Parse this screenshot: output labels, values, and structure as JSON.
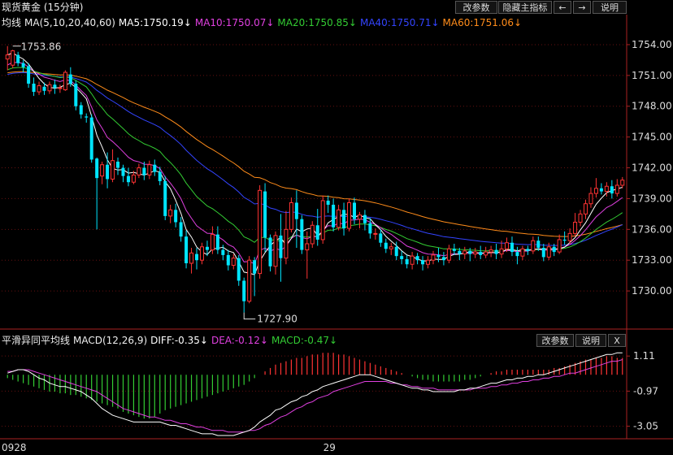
{
  "title": "现货黄金 (15分钟)",
  "top_buttons": [
    {
      "label": "改参数"
    },
    {
      "label": "隐藏主指标"
    },
    {
      "label": "←"
    },
    {
      "label": "→"
    },
    {
      "label": "说明"
    }
  ],
  "ma_legend": {
    "name": "均线",
    "params": "MA(5,10,20,40,60)",
    "items": [
      {
        "text": "MA5:1750.19↓",
        "color": "#ffffff"
      },
      {
        "text": "MA10:1750.07↓",
        "color": "#e040e0"
      },
      {
        "text": "MA20:1750.85↓",
        "color": "#33cc33"
      },
      {
        "text": "MA40:1750.71↓",
        "color": "#3344ff"
      },
      {
        "text": "MA60:1751.06↓",
        "color": "#ff8c1a"
      }
    ]
  },
  "macd_legend": {
    "name": "平滑异同平均线",
    "params": "MACD(12,26,9)",
    "items": [
      {
        "text": "DIFF:-0.35↓",
        "color": "#ffffff"
      },
      {
        "text": "DEA:-0.12↓",
        "color": "#e040e0"
      },
      {
        "text": "MACD:-0.47↓",
        "color": "#33cc33"
      }
    ]
  },
  "macd_buttons": [
    {
      "label": "改参数"
    },
    {
      "label": "说明"
    },
    {
      "label": "X"
    }
  ],
  "colors": {
    "up": "#ff3333",
    "down": "#00e5ff",
    "grid": "#661111",
    "axis": "#aa2222"
  },
  "chart_data": [
    {
      "type": "candlestick",
      "price_ticks": [
        "1754.00",
        "1751.00",
        "1748.00",
        "1745.00",
        "1742.00",
        "1739.00",
        "1736.00",
        "1733.00",
        "1730.00"
      ],
      "ylim": [
        1727.0,
        1755.5
      ],
      "x_labels": [
        {
          "text": "0928",
          "index": 0
        },
        {
          "text": "29",
          "index": 61
        }
      ],
      "annotations": [
        {
          "text": "1753.86",
          "index": 1,
          "value": 1753.86
        },
        {
          "text": "1727.90",
          "index": 45,
          "value": 1727.9
        }
      ],
      "candles": [
        [
          1752.6,
          1753.0,
          1751.5,
          1753.86
        ],
        [
          1752.0,
          1753.4,
          1751.7,
          1753.5
        ],
        [
          1753.0,
          1752.2,
          1751.9,
          1753.3
        ],
        [
          1752.2,
          1751.8,
          1751.3,
          1752.5
        ],
        [
          1751.9,
          1750.2,
          1749.8,
          1752.2
        ],
        [
          1750.2,
          1749.4,
          1749.0,
          1750.8
        ],
        [
          1749.4,
          1750.0,
          1749.1,
          1750.4
        ],
        [
          1749.9,
          1749.5,
          1749.1,
          1750.3
        ],
        [
          1749.5,
          1750.1,
          1749.2,
          1750.4
        ],
        [
          1750.1,
          1749.8,
          1749.2,
          1750.6
        ],
        [
          1749.8,
          1749.8,
          1749.3,
          1750.1
        ],
        [
          1749.6,
          1751.3,
          1749.5,
          1751.5
        ],
        [
          1751.1,
          1750.2,
          1749.9,
          1751.8
        ],
        [
          1750.2,
          1748.0,
          1747.6,
          1750.5
        ],
        [
          1748.1,
          1747.2,
          1746.8,
          1748.4
        ],
        [
          1747.0,
          1746.9,
          1746.4,
          1747.3
        ],
        [
          1746.9,
          1742.8,
          1742.5,
          1747.2
        ],
        [
          1742.9,
          1741.0,
          1736.0,
          1743.0
        ],
        [
          1741.2,
          1742.3,
          1740.4,
          1742.6
        ],
        [
          1742.3,
          1740.9,
          1740.0,
          1743.5
        ],
        [
          1740.9,
          1742.7,
          1740.6,
          1743.8
        ],
        [
          1742.6,
          1742.0,
          1741.3,
          1743.0
        ],
        [
          1742.0,
          1741.2,
          1740.6,
          1742.3
        ],
        [
          1741.2,
          1740.6,
          1740.2,
          1742.0
        ],
        [
          1740.6,
          1741.3,
          1740.4,
          1741.7
        ],
        [
          1741.3,
          1742.0,
          1741.0,
          1742.4
        ],
        [
          1742.0,
          1741.3,
          1740.8,
          1742.6
        ],
        [
          1741.3,
          1742.3,
          1740.9,
          1742.7
        ],
        [
          1742.3,
          1741.6,
          1741.2,
          1742.8
        ],
        [
          1741.6,
          1740.7,
          1740.3,
          1742.1
        ],
        [
          1740.7,
          1737.3,
          1736.9,
          1741.2
        ],
        [
          1737.3,
          1737.9,
          1736.6,
          1738.4
        ],
        [
          1737.9,
          1736.7,
          1736.2,
          1738.5
        ],
        [
          1736.7,
          1735.3,
          1734.8,
          1737.2
        ],
        [
          1735.3,
          1732.7,
          1732.2,
          1735.9
        ],
        [
          1732.7,
          1733.7,
          1731.7,
          1734.2
        ],
        [
          1733.6,
          1733.0,
          1732.1,
          1734.2
        ],
        [
          1733.0,
          1734.3,
          1732.6,
          1734.7
        ],
        [
          1734.3,
          1734.0,
          1733.4,
          1734.9
        ],
        [
          1734.0,
          1735.5,
          1733.6,
          1736.3
        ],
        [
          1735.5,
          1734.0,
          1733.6,
          1736.3
        ],
        [
          1734.0,
          1733.5,
          1733.0,
          1734.5
        ],
        [
          1733.5,
          1732.5,
          1732.0,
          1734.0
        ],
        [
          1732.5,
          1733.2,
          1732.1,
          1733.6
        ],
        [
          1733.2,
          1731.0,
          1730.5,
          1733.5
        ],
        [
          1731.0,
          1729.0,
          1727.9,
          1731.3
        ],
        [
          1729.0,
          1733.0,
          1728.8,
          1733.4
        ],
        [
          1733.0,
          1731.7,
          1729.5,
          1733.3
        ],
        [
          1731.7,
          1739.8,
          1731.2,
          1740.3
        ],
        [
          1739.7,
          1735.2,
          1733.8,
          1740.5
        ],
        [
          1735.2,
          1732.4,
          1731.9,
          1735.5
        ],
        [
          1732.4,
          1735.4,
          1731.6,
          1735.8
        ],
        [
          1735.4,
          1733.2,
          1730.9,
          1737.5
        ],
        [
          1733.2,
          1736.0,
          1732.6,
          1737.8
        ],
        [
          1736.0,
          1738.6,
          1735.7,
          1739.1
        ],
        [
          1738.6,
          1737.0,
          1734.2,
          1739.8
        ],
        [
          1737.0,
          1734.0,
          1733.6,
          1737.4
        ],
        [
          1734.0,
          1734.6,
          1731.2,
          1735.8
        ],
        [
          1734.6,
          1736.4,
          1734.2,
          1736.8
        ],
        [
          1736.4,
          1735.0,
          1734.4,
          1738.0
        ],
        [
          1735.0,
          1738.8,
          1734.6,
          1739.3
        ],
        [
          1738.8,
          1738.4,
          1737.6,
          1739.3
        ],
        [
          1738.4,
          1736.2,
          1735.8,
          1739.0
        ],
        [
          1736.2,
          1737.9,
          1735.9,
          1738.4
        ],
        [
          1737.9,
          1736.1,
          1735.4,
          1738.6
        ],
        [
          1736.1,
          1738.6,
          1735.8,
          1739.0
        ],
        [
          1738.6,
          1737.0,
          1736.5,
          1739.1
        ],
        [
          1737.0,
          1737.4,
          1736.1,
          1737.7
        ],
        [
          1737.4,
          1736.6,
          1735.9,
          1737.9
        ],
        [
          1736.6,
          1735.6,
          1735.1,
          1737.1
        ],
        [
          1735.6,
          1735.6,
          1735.0,
          1736.1
        ],
        [
          1735.6,
          1734.7,
          1734.3,
          1736.0
        ],
        [
          1734.7,
          1734.1,
          1733.7,
          1735.1
        ],
        [
          1734.1,
          1734.3,
          1733.5,
          1734.7
        ],
        [
          1734.3,
          1733.4,
          1733.0,
          1734.8
        ],
        [
          1733.4,
          1733.1,
          1732.6,
          1733.9
        ],
        [
          1733.1,
          1732.6,
          1732.2,
          1733.5
        ],
        [
          1732.6,
          1733.4,
          1732.1,
          1733.8
        ],
        [
          1733.4,
          1733.0,
          1732.6,
          1733.7
        ],
        [
          1733.0,
          1732.6,
          1732.0,
          1733.4
        ],
        [
          1732.6,
          1733.0,
          1732.2,
          1733.4
        ],
        [
          1733.0,
          1733.5,
          1732.6,
          1733.9
        ],
        [
          1733.5,
          1733.3,
          1732.8,
          1734.2
        ],
        [
          1733.3,
          1733.0,
          1732.5,
          1733.8
        ],
        [
          1733.0,
          1734.1,
          1732.7,
          1734.5
        ],
        [
          1734.1,
          1733.9,
          1733.5,
          1734.6
        ],
        [
          1733.9,
          1733.6,
          1733.0,
          1734.2
        ],
        [
          1733.6,
          1733.9,
          1733.1,
          1734.3
        ],
        [
          1733.9,
          1733.6,
          1732.9,
          1734.2
        ],
        [
          1733.6,
          1733.8,
          1733.2,
          1734.2
        ],
        [
          1733.8,
          1733.5,
          1733.1,
          1734.4
        ],
        [
          1733.5,
          1733.8,
          1733.2,
          1734.3
        ],
        [
          1733.8,
          1734.0,
          1733.3,
          1734.4
        ],
        [
          1734.0,
          1733.6,
          1733.1,
          1734.6
        ],
        [
          1733.6,
          1734.1,
          1733.2,
          1734.9
        ],
        [
          1734.1,
          1734.7,
          1733.8,
          1735.2
        ],
        [
          1734.7,
          1733.8,
          1733.4,
          1735.3
        ],
        [
          1733.8,
          1733.4,
          1732.6,
          1734.3
        ],
        [
          1733.4,
          1734.1,
          1733.0,
          1734.4
        ],
        [
          1734.1,
          1733.9,
          1733.5,
          1734.4
        ],
        [
          1733.9,
          1734.9,
          1733.6,
          1735.3
        ],
        [
          1734.9,
          1734.2,
          1733.9,
          1735.3
        ],
        [
          1734.2,
          1733.3,
          1732.9,
          1734.6
        ],
        [
          1733.3,
          1734.3,
          1733.0,
          1734.7
        ],
        [
          1734.3,
          1733.8,
          1733.4,
          1734.6
        ],
        [
          1733.8,
          1735.0,
          1733.6,
          1735.5
        ],
        [
          1735.0,
          1734.9,
          1734.5,
          1735.8
        ],
        [
          1734.9,
          1735.6,
          1734.6,
          1736.1
        ],
        [
          1735.6,
          1736.7,
          1735.3,
          1737.6
        ],
        [
          1736.7,
          1737.5,
          1736.3,
          1737.9
        ],
        [
          1737.5,
          1738.5,
          1737.0,
          1738.9
        ],
        [
          1738.5,
          1739.5,
          1738.1,
          1740.1
        ],
        [
          1739.5,
          1740.0,
          1739.1,
          1741.0
        ],
        [
          1740.0,
          1739.7,
          1739.4,
          1740.5
        ],
        [
          1739.7,
          1740.2,
          1739.2,
          1740.6
        ],
        [
          1740.2,
          1739.5,
          1739.0,
          1740.8
        ],
        [
          1739.5,
          1740.3,
          1739.2,
          1740.9
        ],
        [
          1740.3,
          1740.8,
          1740.0,
          1741.1
        ]
      ],
      "ma5": [
        1752.2,
        1752.4,
        1752.6,
        1752.7,
        1752.5,
        1751.9,
        1751.3,
        1750.6,
        1749.8,
        1749.8,
        1749.7,
        1750.1,
        1750.2,
        1749.9,
        1749.4,
        1748.8,
        1747.2,
        1745.3,
        1744.0,
        1742.8,
        1741.9,
        1741.8,
        1741.6,
        1741.5,
        1741.2,
        1741.4,
        1741.3,
        1741.5,
        1741.6,
        1741.6,
        1740.6,
        1739.9,
        1738.9,
        1737.6,
        1735.9,
        1735.2,
        1734.3,
        1733.7,
        1733.5,
        1734.1,
        1734.2,
        1734.3,
        1733.9,
        1733.3,
        1732.8,
        1731.8,
        1731.7,
        1731.6,
        1732.9,
        1733.7,
        1734.2,
        1735.3,
        1735.2,
        1735.2,
        1735.1,
        1735.6,
        1735.7,
        1735.2,
        1735.0,
        1735.4,
        1735.8,
        1736.5,
        1736.8,
        1736.8,
        1737.1,
        1737.3,
        1737.1,
        1737.2,
        1737.1,
        1736.6,
        1736.2,
        1735.7,
        1735.2,
        1734.7,
        1734.4,
        1734.0,
        1733.6,
        1733.4,
        1733.3,
        1733.0,
        1732.9,
        1733.0,
        1733.2,
        1733.3,
        1733.4,
        1733.6,
        1733.7,
        1733.8,
        1733.9,
        1733.8,
        1733.7,
        1733.7,
        1733.8,
        1733.8,
        1733.8,
        1733.8,
        1734.0,
        1734.1,
        1734.0,
        1734.0,
        1734.0,
        1734.1,
        1734.0,
        1733.9,
        1734.0,
        1734.1,
        1734.3,
        1734.4,
        1735.0,
        1735.6,
        1736.5,
        1737.6,
        1738.6,
        1739.1,
        1739.6,
        1739.8,
        1740.0,
        1740.1
      ]
    },
    {
      "type": "bar+line",
      "name": "MACD",
      "ticks": [
        "1.11",
        "-0.97",
        "-3.05"
      ],
      "ylim": [
        -3.6,
        1.6
      ],
      "macd_bars": [
        -0.2,
        -0.3,
        -0.4,
        -0.5,
        -0.6,
        -0.7,
        -0.8,
        -0.9,
        -1.0,
        -1.0,
        -1.1,
        -1.1,
        -1.2,
        -1.2,
        -1.3,
        -1.4,
        -1.5,
        -1.6,
        -1.7,
        -1.8,
        -1.9,
        -2.0,
        -2.2,
        -2.3,
        -2.4,
        -2.5,
        -2.6,
        -2.6,
        -2.5,
        -2.3,
        -2.1,
        -2.0,
        -1.9,
        -1.8,
        -1.7,
        -1.6,
        -1.5,
        -1.4,
        -1.3,
        -1.2,
        -1.1,
        -1.0,
        -0.9,
        -0.8,
        -0.7,
        -0.6,
        -0.4,
        -0.2,
        0.0,
        0.2,
        0.4,
        0.6,
        0.7,
        0.8,
        0.9,
        1.0,
        1.0,
        1.1,
        1.2,
        1.2,
        1.3,
        1.3,
        1.3,
        1.2,
        1.2,
        1.1,
        1.0,
        0.9,
        0.8,
        0.7,
        0.6,
        0.5,
        0.4,
        0.3,
        0.2,
        0.1,
        0.0,
        -0.1,
        -0.2,
        -0.3,
        -0.3,
        -0.4,
        -0.4,
        -0.4,
        -0.4,
        -0.4,
        -0.4,
        -0.3,
        -0.3,
        -0.2,
        -0.1,
        0.0,
        0.1,
        0.2,
        0.2,
        0.3,
        0.3,
        0.3,
        0.3,
        0.3,
        0.3,
        0.3,
        0.3,
        0.3,
        0.4,
        0.4,
        0.5,
        0.6,
        0.7,
        0.8,
        0.9,
        0.9,
        1.0,
        1.0,
        1.1,
        1.1,
        1.0,
        1.0
      ],
      "diff": [
        0.1,
        0.2,
        0.3,
        0.3,
        0.2,
        0.0,
        -0.2,
        -0.3,
        -0.5,
        -0.6,
        -0.7,
        -0.7,
        -0.8,
        -0.9,
        -1.0,
        -1.2,
        -1.4,
        -1.7,
        -2.0,
        -2.2,
        -2.4,
        -2.5,
        -2.6,
        -2.7,
        -2.8,
        -2.8,
        -2.8,
        -2.8,
        -2.8,
        -2.8,
        -2.9,
        -3.0,
        -3.0,
        -3.1,
        -3.2,
        -3.3,
        -3.4,
        -3.5,
        -3.5,
        -3.5,
        -3.6,
        -3.6,
        -3.6,
        -3.6,
        -3.5,
        -3.4,
        -3.3,
        -3.1,
        -2.8,
        -2.6,
        -2.4,
        -2.1,
        -2.0,
        -1.8,
        -1.6,
        -1.5,
        -1.3,
        -1.2,
        -1.0,
        -0.9,
        -0.7,
        -0.6,
        -0.5,
        -0.4,
        -0.3,
        -0.2,
        -0.1,
        0.0,
        0.0,
        0.0,
        -0.1,
        -0.2,
        -0.3,
        -0.4,
        -0.5,
        -0.6,
        -0.7,
        -0.8,
        -0.8,
        -0.9,
        -0.9,
        -1.0,
        -1.0,
        -1.0,
        -1.0,
        -1.0,
        -0.9,
        -0.9,
        -0.8,
        -0.8,
        -0.7,
        -0.6,
        -0.5,
        -0.5,
        -0.4,
        -0.3,
        -0.3,
        -0.2,
        -0.2,
        -0.1,
        -0.1,
        0.0,
        0.0,
        0.1,
        0.2,
        0.3,
        0.4,
        0.5,
        0.6,
        0.7,
        0.8,
        0.9,
        1.0,
        1.1,
        1.2,
        1.2,
        1.3,
        1.3
      ],
      "dea": [
        0.2,
        0.2,
        0.3,
        0.3,
        0.3,
        0.2,
        0.1,
        0.0,
        -0.1,
        -0.2,
        -0.3,
        -0.4,
        -0.5,
        -0.6,
        -0.7,
        -0.8,
        -0.9,
        -1.0,
        -1.2,
        -1.4,
        -1.6,
        -1.8,
        -2.0,
        -2.1,
        -2.2,
        -2.3,
        -2.4,
        -2.5,
        -2.5,
        -2.6,
        -2.7,
        -2.7,
        -2.8,
        -2.9,
        -2.9,
        -3.0,
        -3.1,
        -3.1,
        -3.2,
        -3.3,
        -3.3,
        -3.3,
        -3.4,
        -3.4,
        -3.4,
        -3.4,
        -3.3,
        -3.3,
        -3.2,
        -3.0,
        -2.9,
        -2.7,
        -2.5,
        -2.4,
        -2.2,
        -2.0,
        -1.9,
        -1.7,
        -1.6,
        -1.4,
        -1.3,
        -1.2,
        -1.0,
        -0.9,
        -0.8,
        -0.7,
        -0.6,
        -0.5,
        -0.4,
        -0.4,
        -0.4,
        -0.4,
        -0.4,
        -0.5,
        -0.5,
        -0.6,
        -0.6,
        -0.7,
        -0.7,
        -0.8,
        -0.8,
        -0.8,
        -0.9,
        -0.9,
        -0.9,
        -0.9,
        -0.9,
        -0.9,
        -0.9,
        -0.8,
        -0.8,
        -0.8,
        -0.7,
        -0.7,
        -0.6,
        -0.6,
        -0.5,
        -0.5,
        -0.4,
        -0.4,
        -0.3,
        -0.3,
        -0.2,
        -0.2,
        -0.1,
        -0.1,
        0.0,
        0.1,
        0.1,
        0.2,
        0.3,
        0.4,
        0.5,
        0.6,
        0.7,
        0.8,
        0.8,
        0.9
      ]
    }
  ]
}
